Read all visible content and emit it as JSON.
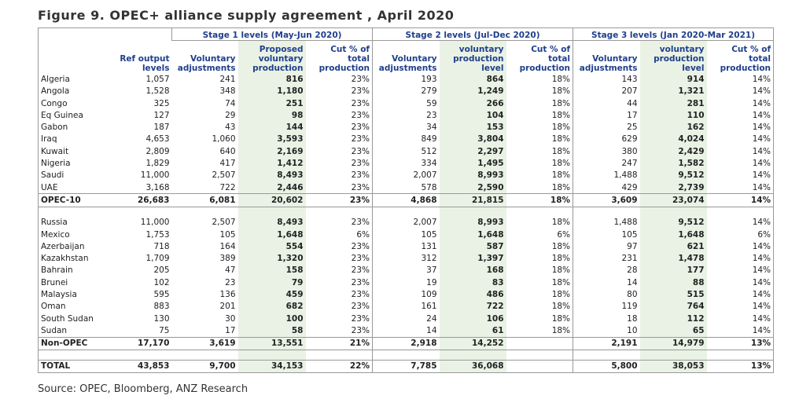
{
  "header": {
    "title": "Figure 9. OPEC+ alliance supply agreement , April 2020"
  },
  "table": {
    "stages": [
      "Stage 1 levels (May-Jun 2020)",
      "Stage 2 levels (Jul-Dec 2020)",
      "Stage 3 levels (Jan 2020-Mar 2021)"
    ],
    "columns": [
      "Ref output levels",
      "Voluntary adjustments",
      "Proposed voluntary production",
      "Cut % of total production",
      "Voluntary adjustments",
      "voluntary production level",
      "Cut % of total production",
      "Voluntary adjustments",
      "voluntary production level",
      "Cut % of total production"
    ],
    "rows": [
      [
        "Algeria",
        "1,057",
        "241",
        "816",
        "23%",
        "193",
        "864",
        "18%",
        "143",
        "914",
        "14%"
      ],
      [
        "Angola",
        "1,528",
        "348",
        "1,180",
        "23%",
        "279",
        "1,249",
        "18%",
        "207",
        "1,321",
        "14%"
      ],
      [
        "Congo",
        "325",
        "74",
        "251",
        "23%",
        "59",
        "266",
        "18%",
        "44",
        "281",
        "14%"
      ],
      [
        "Eq Guinea",
        "127",
        "29",
        "98",
        "23%",
        "23",
        "104",
        "18%",
        "17",
        "110",
        "14%"
      ],
      [
        "Gabon",
        "187",
        "43",
        "144",
        "23%",
        "34",
        "153",
        "18%",
        "25",
        "162",
        "14%"
      ],
      [
        "Iraq",
        "4,653",
        "1,060",
        "3,593",
        "23%",
        "849",
        "3,804",
        "18%",
        "629",
        "4,024",
        "14%"
      ],
      [
        "Kuwait",
        "2,809",
        "640",
        "2,169",
        "23%",
        "512",
        "2,297",
        "18%",
        "380",
        "2,429",
        "14%"
      ],
      [
        "Nigeria",
        "1,829",
        "417",
        "1,412",
        "23%",
        "334",
        "1,495",
        "18%",
        "247",
        "1,582",
        "14%"
      ],
      [
        "Saudi",
        "11,000",
        "2,507",
        "8,493",
        "23%",
        "2,007",
        "8,993",
        "18%",
        "1,488",
        "9,512",
        "14%"
      ],
      [
        "UAE",
        "3,168",
        "722",
        "2,446",
        "23%",
        "578",
        "2,590",
        "18%",
        "429",
        "2,739",
        "14%"
      ],
      [
        "OPEC-10",
        "26,683",
        "6,081",
        "20,602",
        "23%",
        "4,868",
        "21,815",
        "18%",
        "3,609",
        "23,074",
        "14%"
      ],
      [
        "Russia",
        "11,000",
        "2,507",
        "8,493",
        "23%",
        "2,007",
        "8,993",
        "18%",
        "1,488",
        "9,512",
        "14%"
      ],
      [
        "Mexico",
        "1,753",
        "105",
        "1,648",
        "6%",
        "105",
        "1,648",
        "6%",
        "105",
        "1,648",
        "6%"
      ],
      [
        "Azerbaijan",
        "718",
        "164",
        "554",
        "23%",
        "131",
        "587",
        "18%",
        "97",
        "621",
        "14%"
      ],
      [
        "Kazakhstan",
        "1,709",
        "389",
        "1,320",
        "23%",
        "312",
        "1,397",
        "18%",
        "231",
        "1,478",
        "14%"
      ],
      [
        "Bahrain",
        "205",
        "47",
        "158",
        "23%",
        "37",
        "168",
        "18%",
        "28",
        "177",
        "14%"
      ],
      [
        "Brunei",
        "102",
        "23",
        "79",
        "23%",
        "19",
        "83",
        "18%",
        "14",
        "88",
        "14%"
      ],
      [
        "Malaysia",
        "595",
        "136",
        "459",
        "23%",
        "109",
        "486",
        "18%",
        "80",
        "515",
        "14%"
      ],
      [
        "Oman",
        "883",
        "201",
        "682",
        "23%",
        "161",
        "722",
        "18%",
        "119",
        "764",
        "14%"
      ],
      [
        "South Sudan",
        "130",
        "30",
        "100",
        "23%",
        "24",
        "106",
        "18%",
        "18",
        "112",
        "14%"
      ],
      [
        "Sudan",
        "75",
        "17",
        "58",
        "23%",
        "14",
        "61",
        "18%",
        "10",
        "65",
        "14%"
      ],
      [
        "Non-OPEC",
        "17,170",
        "3,619",
        "13,551",
        "21%",
        "2,918",
        "14,252",
        null,
        "2,191",
        "14,979",
        "13%"
      ],
      [
        "TOTAL",
        "43,853",
        "9,700",
        "34,153",
        "22%",
        "7,785",
        "36,068",
        null,
        "5,800",
        "38,053",
        "13%"
      ]
    ]
  },
  "footer": {
    "source": "Source: OPEC, Bloomberg, ANZ Research"
  }
}
